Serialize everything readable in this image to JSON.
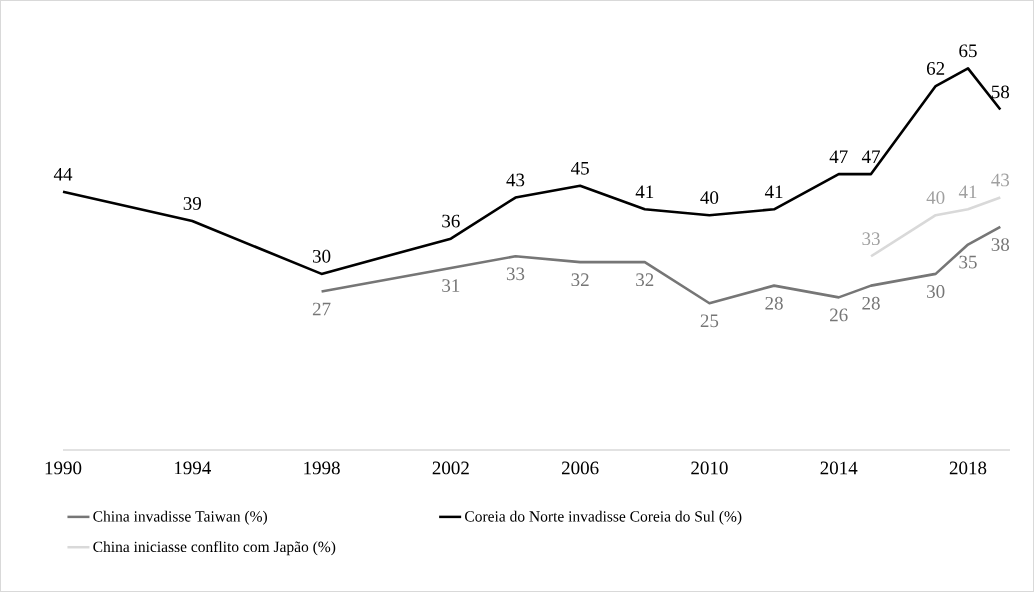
{
  "chart_data": {
    "type": "line",
    "xlim": [
      1990,
      2019.3
    ],
    "xticks": [
      1990,
      1994,
      1998,
      2002,
      2006,
      2010,
      2014,
      2018
    ],
    "data_labels": true,
    "tick_labels": "x",
    "legend": "bottom",
    "line_style": "solid",
    "series": [
      {
        "name": "China invadisse Taiwan (%)",
        "color": "#767676",
        "x": [
          1998,
          2002,
          2004,
          2006,
          2008,
          2010,
          2012,
          2014,
          2015,
          2017,
          2018,
          2019
        ],
        "values": [
          27,
          31,
          33,
          32,
          32,
          25,
          28,
          26,
          28,
          30,
          35,
          38
        ]
      },
      {
        "name": "Coreia do Norte invadisse Coreia do Sul (%)",
        "color": "#000000",
        "x": [
          1990,
          1994,
          1998,
          2002,
          2004,
          2006,
          2008,
          2010,
          2012,
          2014,
          2015,
          2017,
          2018,
          2019
        ],
        "values": [
          44,
          39,
          30,
          36,
          43,
          45,
          41,
          40,
          41,
          47,
          47,
          62,
          65,
          58
        ]
      },
      {
        "name": "China iniciasse conflito com Japão (%)",
        "color": "#d9d9d9",
        "x": [
          2015,
          2017,
          2018,
          2019
        ],
        "values": [
          33,
          40,
          41,
          43
        ]
      }
    ]
  }
}
